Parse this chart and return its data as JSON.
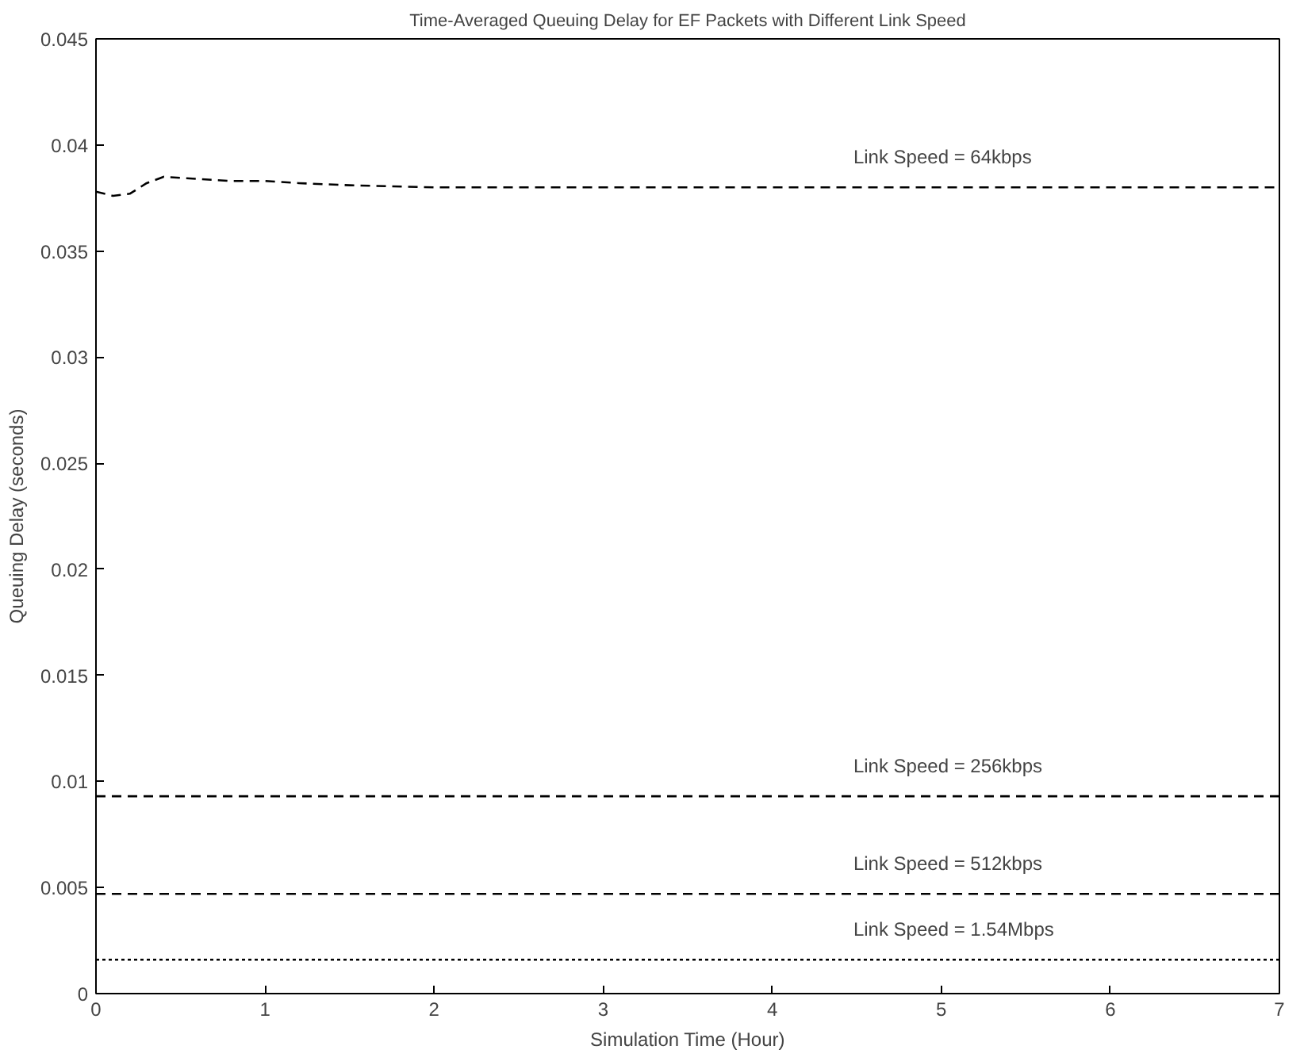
{
  "chart_data": {
    "type": "line",
    "title": "Time-Averaged Queuing Delay for EF Packets with Different Link Speed",
    "xlabel": "Simulation Time (Hour)",
    "ylabel": "Queuing Delay (seconds)",
    "xlim": [
      0,
      7
    ],
    "ylim": [
      0,
      0.045
    ],
    "xticks": [
      0,
      1,
      2,
      3,
      4,
      5,
      6,
      7
    ],
    "yticks": [
      0,
      0.005,
      0.01,
      0.015,
      0.02,
      0.025,
      0.03,
      0.035,
      0.04,
      0.045
    ],
    "grid": false,
    "series": [
      {
        "name": "Link Speed = 64kbps",
        "color": "#000000",
        "line_style": "dashed",
        "x": [
          0,
          0.1,
          0.2,
          0.3,
          0.4,
          0.6,
          0.8,
          1.0,
          1.2,
          1.5,
          2,
          3,
          4,
          5,
          6,
          7
        ],
        "values": [
          0.0378,
          0.0376,
          0.0377,
          0.0382,
          0.0385,
          0.0384,
          0.0383,
          0.0383,
          0.0382,
          0.0381,
          0.038,
          0.038,
          0.038,
          0.038,
          0.038,
          0.038
        ]
      },
      {
        "name": "Link Speed = 256kbps",
        "color": "#000000",
        "line_style": "dashed",
        "x": [
          0,
          1,
          2,
          3,
          4,
          5,
          6,
          7
        ],
        "values": [
          0.0093,
          0.0093,
          0.0093,
          0.0093,
          0.0093,
          0.0093,
          0.0093,
          0.0093
        ]
      },
      {
        "name": "Link Speed = 512kbps",
        "color": "#000000",
        "line_style": "dashed",
        "x": [
          0,
          1,
          2,
          3,
          4,
          5,
          6,
          7
        ],
        "values": [
          0.0047,
          0.0047,
          0.0047,
          0.0047,
          0.0047,
          0.0047,
          0.0047,
          0.0047
        ]
      },
      {
        "name": "Link Speed = 1.54Mbps",
        "color": "#000000",
        "line_style": "dotted",
        "x": [
          0,
          1,
          2,
          3,
          4,
          5,
          6,
          7
        ],
        "values": [
          0.0016,
          0.0016,
          0.0016,
          0.0016,
          0.0016,
          0.0016,
          0.0016,
          0.0016
        ]
      }
    ]
  }
}
